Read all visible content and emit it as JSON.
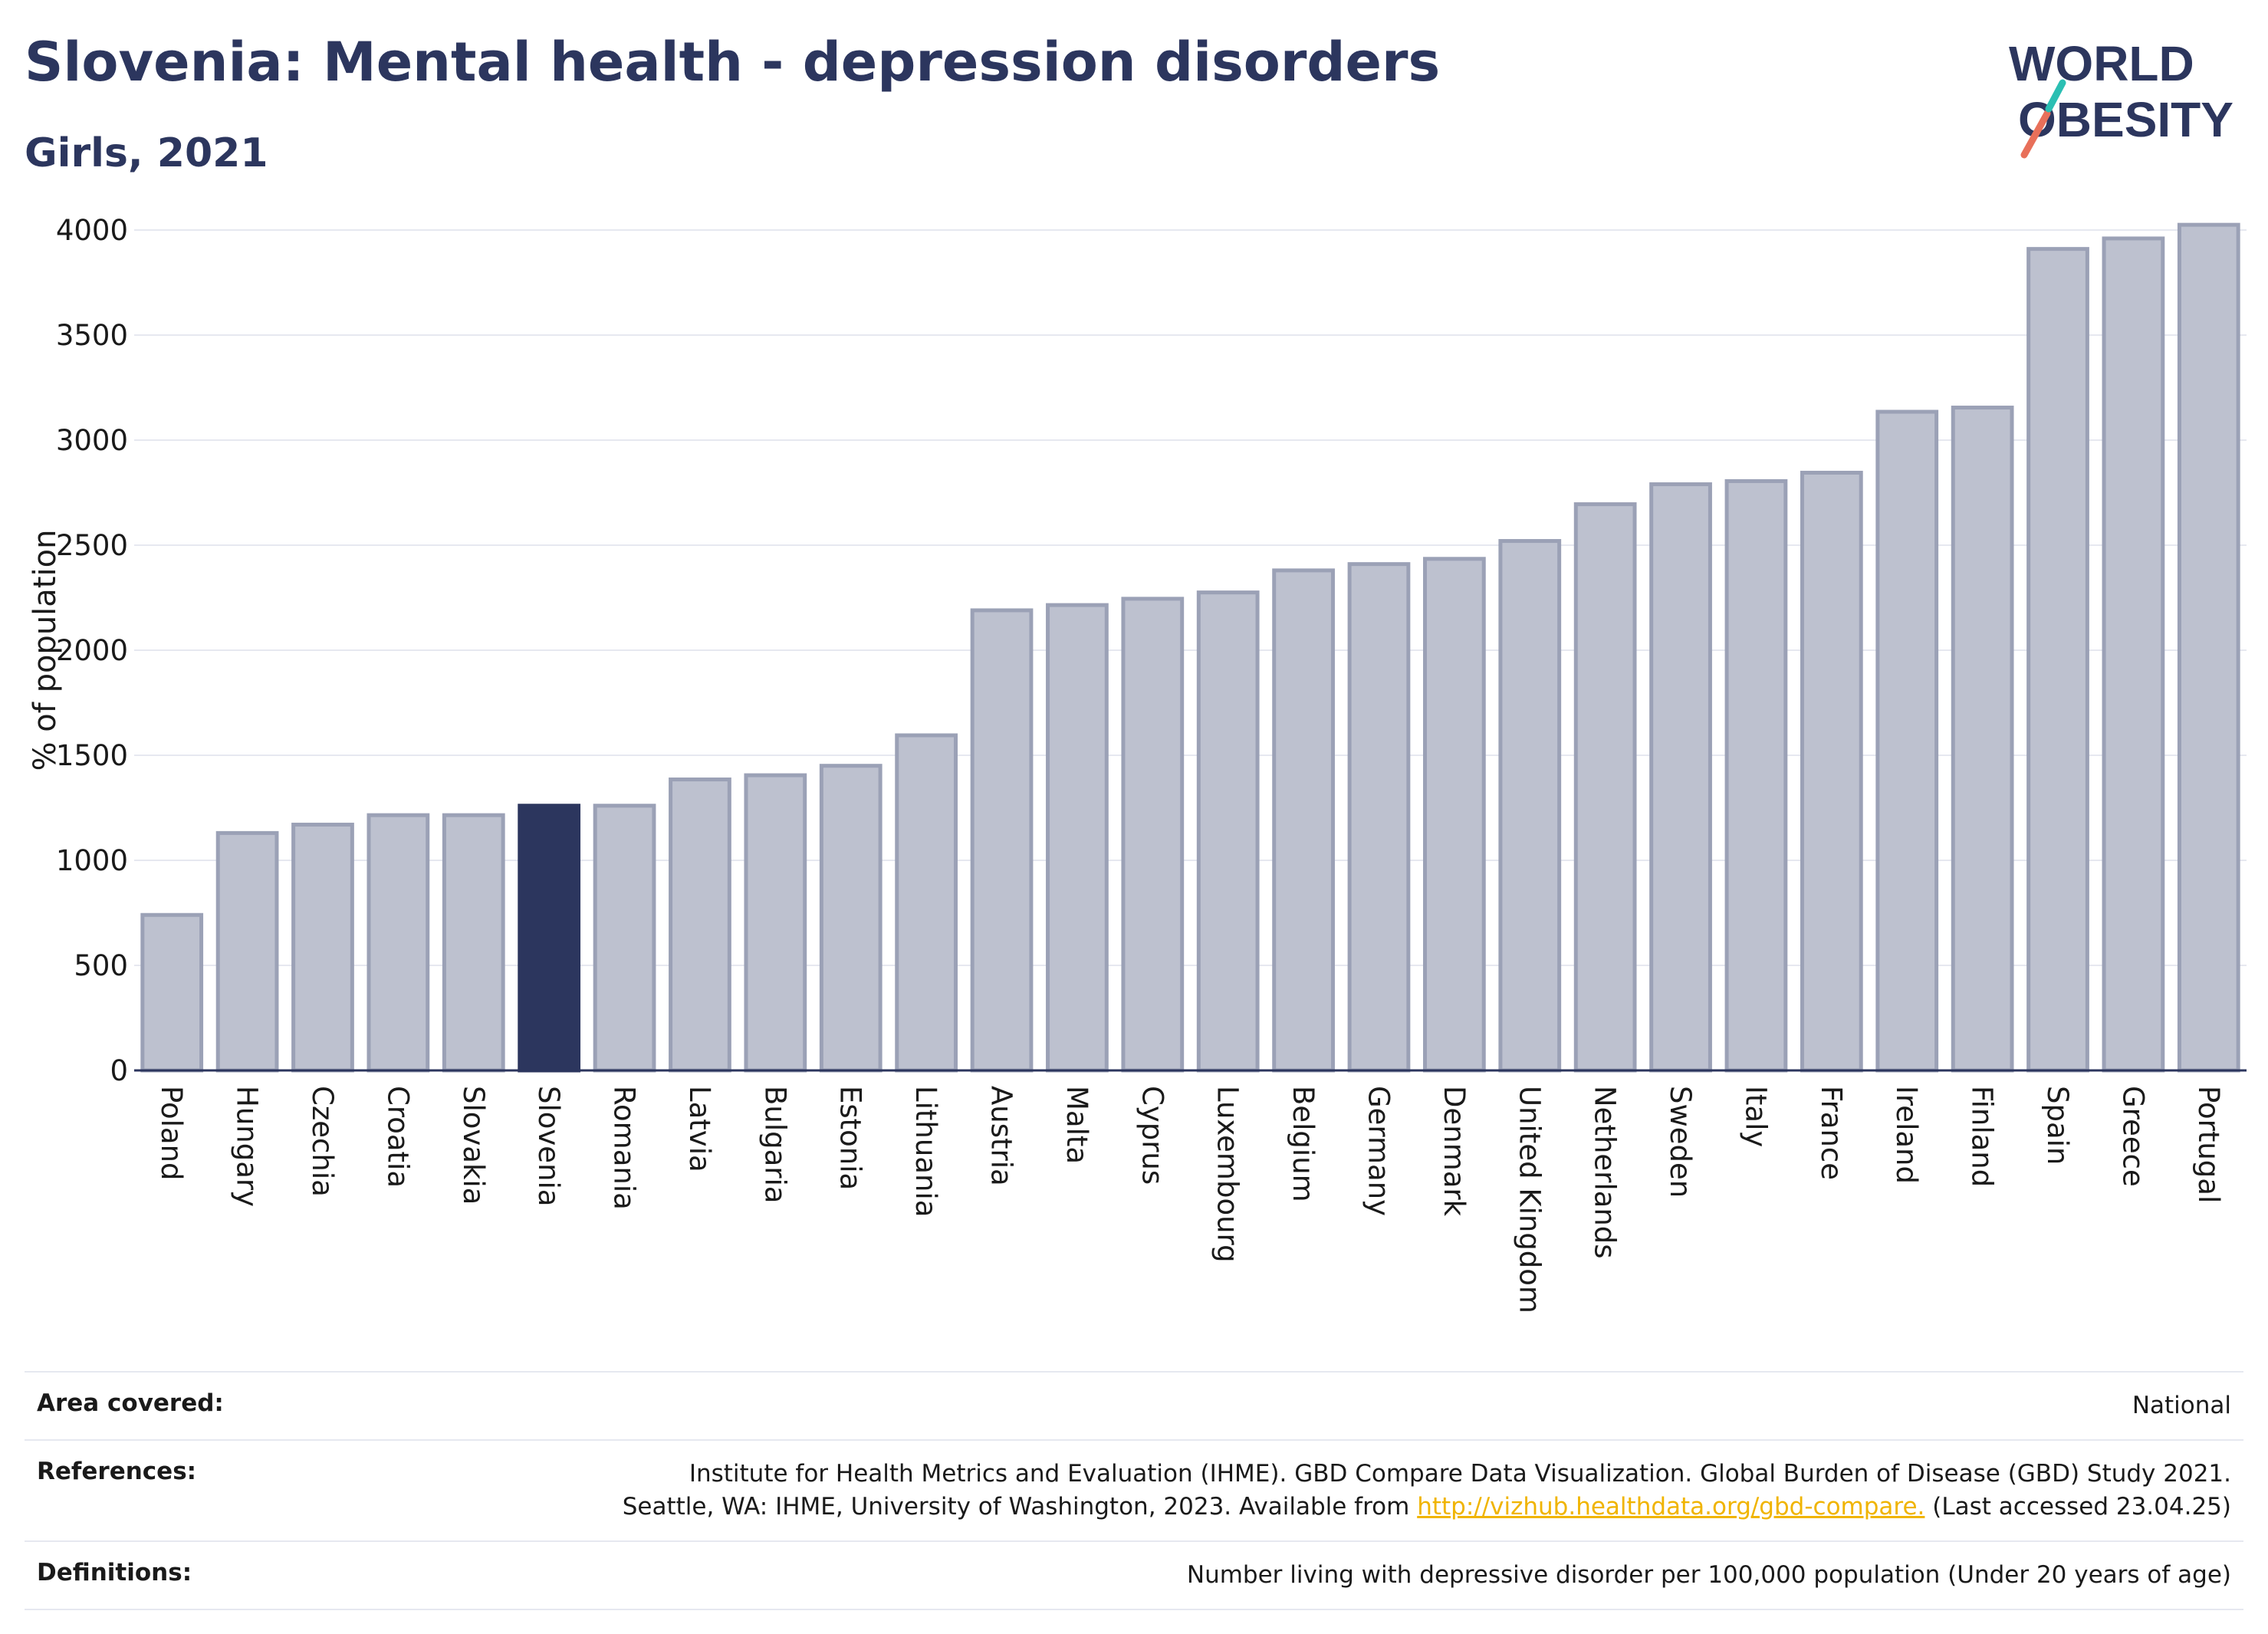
{
  "header": {
    "title": "Slovenia: Mental health - depression disorders",
    "subtitle": "Girls, 2021"
  },
  "logo": {
    "line1": "WORLD",
    "line2": "OBESITY"
  },
  "chart_data": {
    "type": "bar",
    "title": "Slovenia: Mental health - depression disorders",
    "subtitle": "Girls, 2021",
    "xlabel": "",
    "ylabel": "% of population",
    "ylim": [
      0,
      4000
    ],
    "yticks": [
      0,
      500,
      1000,
      1500,
      2000,
      2500,
      3000,
      3500,
      4000
    ],
    "grid": true,
    "highlight": "Slovenia",
    "colors": {
      "bar": "#bdc1cf",
      "bar_edge": "#9ba1b6",
      "highlight": "#2c365e",
      "grid": "#e6e8f0",
      "axis": "#2c365e"
    },
    "categories": [
      "Poland",
      "Hungary",
      "Czechia",
      "Croatia",
      "Slovakia",
      "Slovenia",
      "Romania",
      "Latvia",
      "Bulgaria",
      "Estonia",
      "Lithuania",
      "Austria",
      "Malta",
      "Cyprus",
      "Luxembourg",
      "Belgium",
      "Germany",
      "Denmark",
      "United Kingdom",
      "Netherlands",
      "Sweden",
      "Italy",
      "France",
      "Ireland",
      "Finland",
      "Spain",
      "Greece",
      "Portugal"
    ],
    "values": [
      740,
      1130,
      1170,
      1215,
      1215,
      1260,
      1260,
      1385,
      1405,
      1450,
      1595,
      2190,
      2215,
      2245,
      2275,
      2380,
      2410,
      2435,
      2520,
      2695,
      2790,
      2805,
      2845,
      3135,
      3155,
      3910,
      3960,
      4025
    ]
  },
  "info": {
    "area_label": "Area covered:",
    "area_value": "National",
    "references_label": "References:",
    "references_line1": "Institute for Health Metrics and Evaluation (IHME). GBD Compare Data Visualization. Global Burden of Disease (GBD) Study 2021.",
    "references_line2_pre": "Seattle, WA: IHME, University of Washington, 2023. Available from ",
    "references_link": "http://vizhub.healthdata.org/gbd-compare.",
    "references_line2_post": " (Last accessed 23.04.25)",
    "definitions_label": "Definitions:",
    "definitions_value": "Number living with depressive disorder per 100,000 population (Under 20 years of age)"
  }
}
